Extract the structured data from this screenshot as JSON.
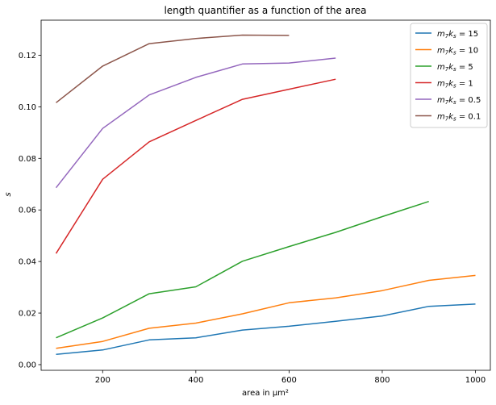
{
  "chart_data": {
    "type": "line",
    "title": "length quantifier as a function of the  area",
    "xlabel": "area in μm²",
    "ylabel": "s",
    "xlim": [
      68,
      1032
    ],
    "ylim": [
      -0.0022,
      0.1336
    ],
    "xticks": [
      200,
      400,
      600,
      800,
      1000
    ],
    "yticks": [
      0.0,
      0.02,
      0.04,
      0.06,
      0.08,
      0.1,
      0.12
    ],
    "ytick_labels": [
      "0.00",
      "0.02",
      "0.04",
      "0.06",
      "0.08",
      "0.10",
      "0.12"
    ],
    "grid": false,
    "legend_position": "top-right",
    "series": [
      {
        "name": "m_7k_s = 15",
        "label_parts": [
          "7",
          "s",
          "= 15"
        ],
        "color": "#1f77b4",
        "x": [
          100,
          200,
          300,
          400,
          500,
          600,
          700,
          800,
          900,
          1000
        ],
        "y": [
          0.004,
          0.0057,
          0.0096,
          0.0104,
          0.0134,
          0.0149,
          0.0168,
          0.0189,
          0.0226,
          0.0235
        ]
      },
      {
        "name": "m_7k_s = 10",
        "label_parts": [
          "7",
          "s",
          "= 10"
        ],
        "color": "#ff7f0e",
        "x": [
          100,
          200,
          300,
          400,
          500,
          600,
          700,
          800,
          900,
          1000
        ],
        "y": [
          0.0063,
          0.009,
          0.0141,
          0.0161,
          0.0197,
          0.024,
          0.0259,
          0.0287,
          0.0327,
          0.0346
        ]
      },
      {
        "name": "m_7k_s = 5",
        "label_parts": [
          "7",
          "s",
          "= 5"
        ],
        "color": "#2ca02c",
        "x": [
          100,
          200,
          300,
          400,
          500,
          600,
          700,
          800,
          900
        ],
        "y": [
          0.0104,
          0.0181,
          0.0275,
          0.0302,
          0.0401,
          0.0458,
          0.0513,
          0.0574,
          0.0633
        ]
      },
      {
        "name": "m_7k_s = 1",
        "label_parts": [
          "7",
          "s",
          "= 1"
        ],
        "color": "#d62728",
        "x": [
          100,
          200,
          300,
          400,
          500,
          600,
          700
        ],
        "y": [
          0.0431,
          0.0719,
          0.0864,
          0.0947,
          0.1029,
          0.1068,
          0.1107
        ]
      },
      {
        "name": "m_7k_s = 0.5",
        "label_parts": [
          "7",
          "s",
          "= 0.5"
        ],
        "color": "#9467bd",
        "x": [
          100,
          200,
          300,
          400,
          500,
          600,
          700
        ],
        "y": [
          0.0686,
          0.0916,
          0.1046,
          0.1114,
          0.1166,
          0.117,
          0.1189
        ]
      },
      {
        "name": "m_7k_s = 0.1",
        "label_parts": [
          "7",
          "s",
          "= 0.1"
        ],
        "color": "#8c564b",
        "x": [
          100,
          200,
          300,
          400,
          500,
          600
        ],
        "y": [
          0.1016,
          0.1158,
          0.1245,
          0.1265,
          0.1278,
          0.1277
        ]
      }
    ]
  }
}
